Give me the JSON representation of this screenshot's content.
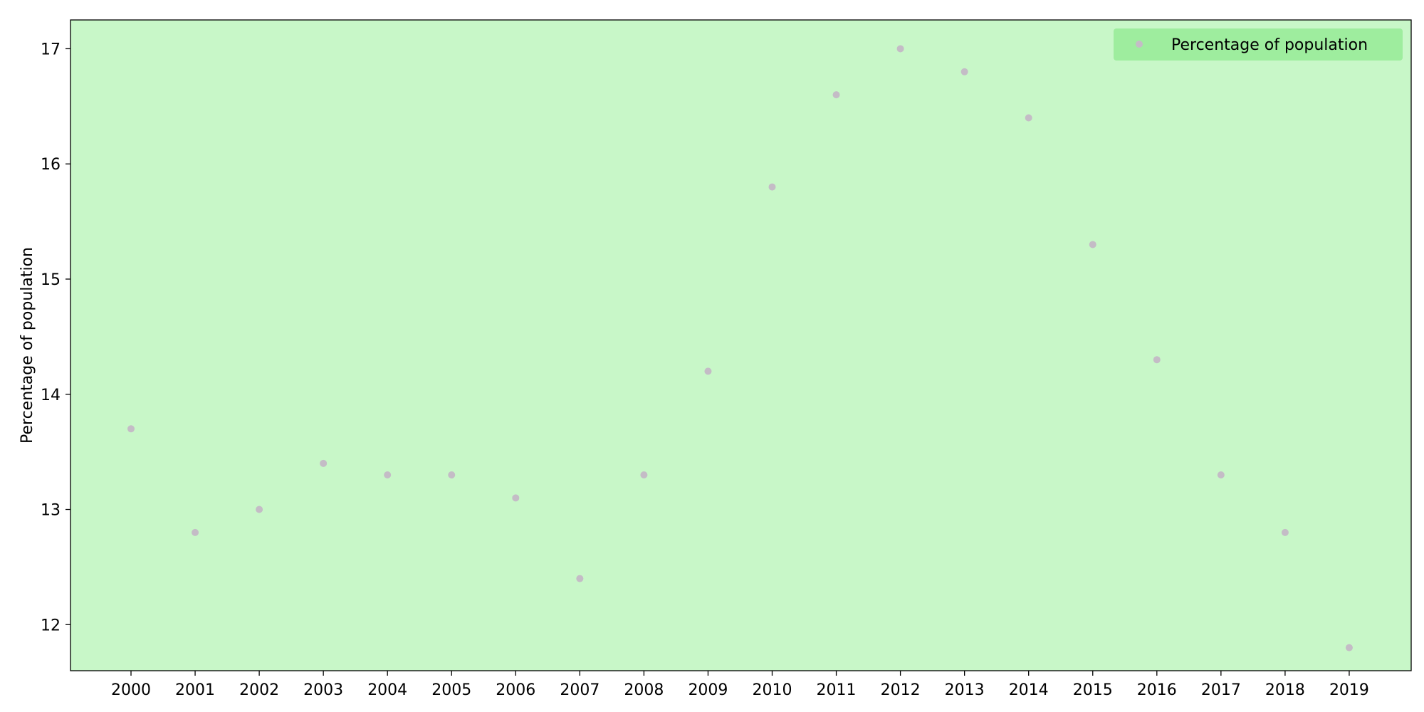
{
  "chart_data": {
    "type": "scatter",
    "x": [
      "2000",
      "2001",
      "2002",
      "2003",
      "2004",
      "2005",
      "2006",
      "2007",
      "2008",
      "2009",
      "2010",
      "2011",
      "2012",
      "2013",
      "2014",
      "2015",
      "2016",
      "2017",
      "2018",
      "2019"
    ],
    "series": [
      {
        "name": "Percentage of population",
        "values": [
          13.7,
          12.8,
          13.0,
          13.4,
          13.3,
          13.3,
          13.1,
          12.4,
          13.3,
          14.2,
          15.8,
          16.6,
          17.0,
          16.8,
          16.4,
          15.3,
          14.3,
          13.3,
          12.8,
          11.8
        ]
      }
    ],
    "xlabel": "",
    "ylabel": "Percentage of population",
    "ylim": [
      11.6,
      17.25
    ],
    "yticks": [
      12,
      13,
      14,
      15,
      16,
      17
    ],
    "grid": false,
    "legend_position": "top-right",
    "colors": {
      "plot_background": "#c8f7c8",
      "legend_background": "#9eed9e",
      "marker": "#c4bcc6",
      "axis": "#000000"
    }
  }
}
